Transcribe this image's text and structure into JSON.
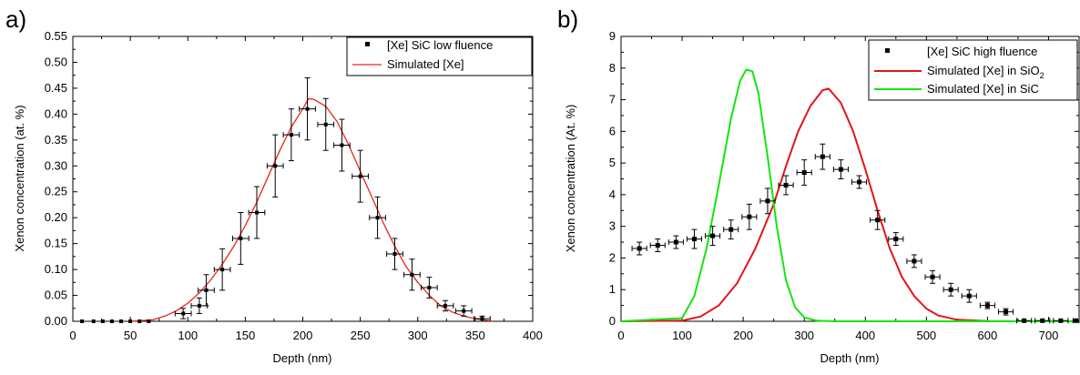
{
  "chart_data": [
    {
      "panel_label": "a)",
      "type": "scatter",
      "xlabel": "Depth (nm)",
      "ylabel": "Xenon concentration (at. %)",
      "xlim": [
        0,
        400
      ],
      "ylim": [
        0,
        0.55
      ],
      "xticks": [
        "0",
        "50",
        "100",
        "150",
        "200",
        "250",
        "300",
        "350",
        "400"
      ],
      "yticks": [
        "0.00",
        "0.05",
        "0.10",
        "0.15",
        "0.20",
        "0.25",
        "0.30",
        "0.35",
        "0.40",
        "0.45",
        "0.50",
        "0.55"
      ],
      "legend_position": "top-right",
      "series": [
        {
          "name": "[Xe] SiC low fluence",
          "kind": "scatter",
          "color": "#000000",
          "x": [
            8,
            18,
            26,
            34,
            42,
            50,
            58,
            66,
            96,
            110,
            116,
            130,
            146,
            160,
            176,
            190,
            204,
            220,
            234,
            250,
            265,
            280,
            295,
            310,
            324,
            340,
            356
          ],
          "y": [
            0,
            0,
            0,
            0,
            0,
            0,
            0,
            0,
            0.015,
            0.03,
            0.06,
            0.1,
            0.16,
            0.21,
            0.3,
            0.36,
            0.41,
            0.38,
            0.34,
            0.28,
            0.2,
            0.13,
            0.09,
            0.065,
            0.03,
            0.02,
            0.005
          ],
          "yerr": [
            0,
            0,
            0,
            0,
            0,
            0,
            0,
            0,
            0.01,
            0.015,
            0.03,
            0.04,
            0.05,
            0.05,
            0.06,
            0.05,
            0.06,
            0.05,
            0.05,
            0.05,
            0.04,
            0.03,
            0.03,
            0.02,
            0.01,
            0.01,
            0.005
          ],
          "xerr": [
            0,
            0,
            0,
            0,
            0,
            0,
            0,
            0,
            7,
            7,
            7,
            7,
            7,
            7,
            7,
            7,
            7,
            7,
            7,
            7,
            7,
            7,
            7,
            7,
            7,
            7,
            7
          ]
        },
        {
          "name": "Simulated [Xe]",
          "kind": "line",
          "color": "#e8251e",
          "x": [
            50,
            70,
            80,
            90,
            100,
            110,
            120,
            130,
            140,
            150,
            160,
            170,
            180,
            190,
            200,
            205,
            210,
            220,
            230,
            240,
            250,
            260,
            270,
            280,
            290,
            300,
            310,
            320,
            330,
            340,
            350,
            360,
            365
          ],
          "y": [
            0,
            0.003,
            0.01,
            0.02,
            0.035,
            0.055,
            0.08,
            0.11,
            0.145,
            0.185,
            0.23,
            0.28,
            0.33,
            0.375,
            0.41,
            0.43,
            0.428,
            0.415,
            0.385,
            0.34,
            0.29,
            0.24,
            0.19,
            0.145,
            0.105,
            0.075,
            0.05,
            0.03,
            0.018,
            0.01,
            0.005,
            0.002,
            0
          ]
        }
      ]
    },
    {
      "panel_label": "b)",
      "type": "scatter",
      "xlabel": "Depth (nm)",
      "ylabel": "Xenon concentration (At. %)",
      "xlim": [
        0,
        750
      ],
      "ylim": [
        0,
        9
      ],
      "xticks": [
        "0",
        "100",
        "200",
        "300",
        "400",
        "500",
        "600",
        "700"
      ],
      "yticks": [
        "0",
        "1",
        "2",
        "3",
        "4",
        "5",
        "6",
        "7",
        "8",
        "9"
      ],
      "legend_position": "top-right",
      "series": [
        {
          "name": "[Xe] SiC high fluence",
          "kind": "scatter",
          "color": "#000000",
          "x": [
            30,
            60,
            90,
            120,
            150,
            180,
            210,
            240,
            270,
            300,
            330,
            360,
            390,
            420,
            450,
            480,
            510,
            540,
            570,
            600,
            630,
            660,
            690,
            720,
            745
          ],
          "y": [
            2.3,
            2.4,
            2.5,
            2.6,
            2.7,
            2.9,
            3.3,
            3.8,
            4.3,
            4.7,
            5.2,
            4.8,
            4.4,
            3.2,
            2.6,
            1.9,
            1.4,
            1.0,
            0.8,
            0.5,
            0.3,
            0.02,
            0.02,
            0.02,
            0.02
          ],
          "yerr": [
            0.2,
            0.2,
            0.2,
            0.3,
            0.3,
            0.3,
            0.4,
            0.4,
            0.3,
            0.4,
            0.4,
            0.3,
            0.2,
            0.3,
            0.2,
            0.2,
            0.2,
            0.2,
            0.2,
            0.1,
            0.1,
            0,
            0,
            0,
            0
          ],
          "xerr": [
            12,
            12,
            12,
            12,
            12,
            12,
            12,
            12,
            12,
            12,
            12,
            12,
            12,
            12,
            12,
            12,
            12,
            12,
            12,
            12,
            12,
            12,
            12,
            12,
            5
          ]
        },
        {
          "name": "Simulated [Xe] in SiO2",
          "kind": "line",
          "color": "#e3141c",
          "x": [
            0,
            100,
            130,
            160,
            190,
            220,
            250,
            270,
            290,
            310,
            330,
            340,
            360,
            380,
            400,
            420,
            440,
            460,
            480,
            500,
            520,
            550,
            600,
            650,
            700,
            750
          ],
          "y": [
            0,
            0.02,
            0.15,
            0.5,
            1.2,
            2.3,
            3.7,
            4.9,
            6.0,
            6.8,
            7.3,
            7.35,
            6.9,
            6.0,
            4.8,
            3.5,
            2.3,
            1.4,
            0.8,
            0.4,
            0.18,
            0.05,
            0.01,
            0,
            0,
            0
          ]
        },
        {
          "name": "Simulated [Xe] in SiC",
          "kind": "line",
          "color": "#12e60e",
          "x": [
            0,
            100,
            120,
            140,
            160,
            180,
            195,
            205,
            215,
            225,
            240,
            255,
            270,
            285,
            300,
            320,
            350,
            400,
            750
          ],
          "y": [
            0,
            0.1,
            0.8,
            2.3,
            4.3,
            6.4,
            7.6,
            7.95,
            7.9,
            7.2,
            5.2,
            3.0,
            1.3,
            0.45,
            0.12,
            0.02,
            0,
            0,
            0
          ]
        }
      ]
    }
  ],
  "legend_b_sio2": {
    "prefix": "Simulated [Xe] in SiO",
    "subscript": "2"
  },
  "colors": {
    "axis": "#000000",
    "points": "#000000",
    "sim_line_a": "#e8251e",
    "sim_line_sio2": "#e3141c",
    "sim_line_sic": "#12e60e"
  }
}
